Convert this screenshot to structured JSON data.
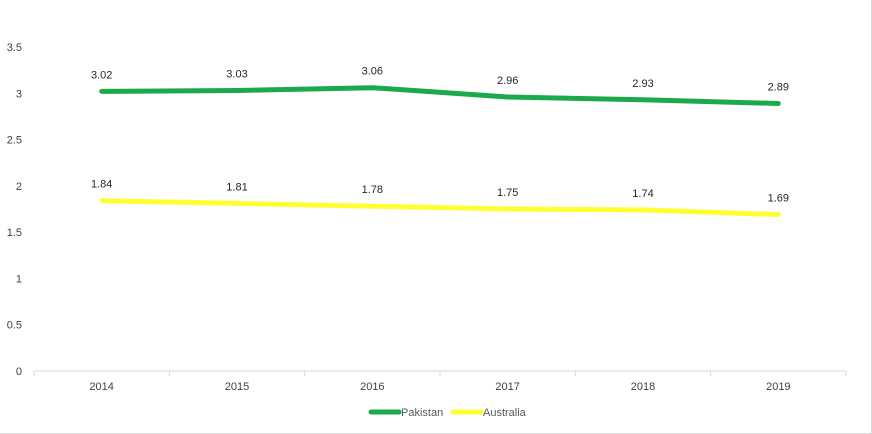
{
  "chart_data": {
    "type": "line",
    "title": "",
    "xlabel": "",
    "ylabel": "",
    "categories": [
      "2014",
      "2015",
      "2016",
      "2017",
      "2018",
      "2019"
    ],
    "ylim": [
      0,
      3.5
    ],
    "yticks": [
      "0",
      "0.5",
      "1",
      "1.5",
      "2",
      "2.5",
      "3",
      "3.5"
    ],
    "grid": false,
    "legend": "bottom",
    "series": [
      {
        "name": "Pakistan",
        "color": "#1aaa4b",
        "values": [
          3.02,
          3.03,
          3.06,
          2.96,
          2.93,
          2.89
        ],
        "labels": [
          "3.02",
          "3.03",
          "3.06",
          "2.96",
          "2.93",
          "2.89"
        ]
      },
      {
        "name": "Australia",
        "color": "#ffff33",
        "values": [
          1.84,
          1.81,
          1.78,
          1.75,
          1.74,
          1.69
        ],
        "labels": [
          "1.84",
          "1.81",
          "1.78",
          "1.75",
          "1.74",
          "1.69"
        ]
      }
    ]
  }
}
